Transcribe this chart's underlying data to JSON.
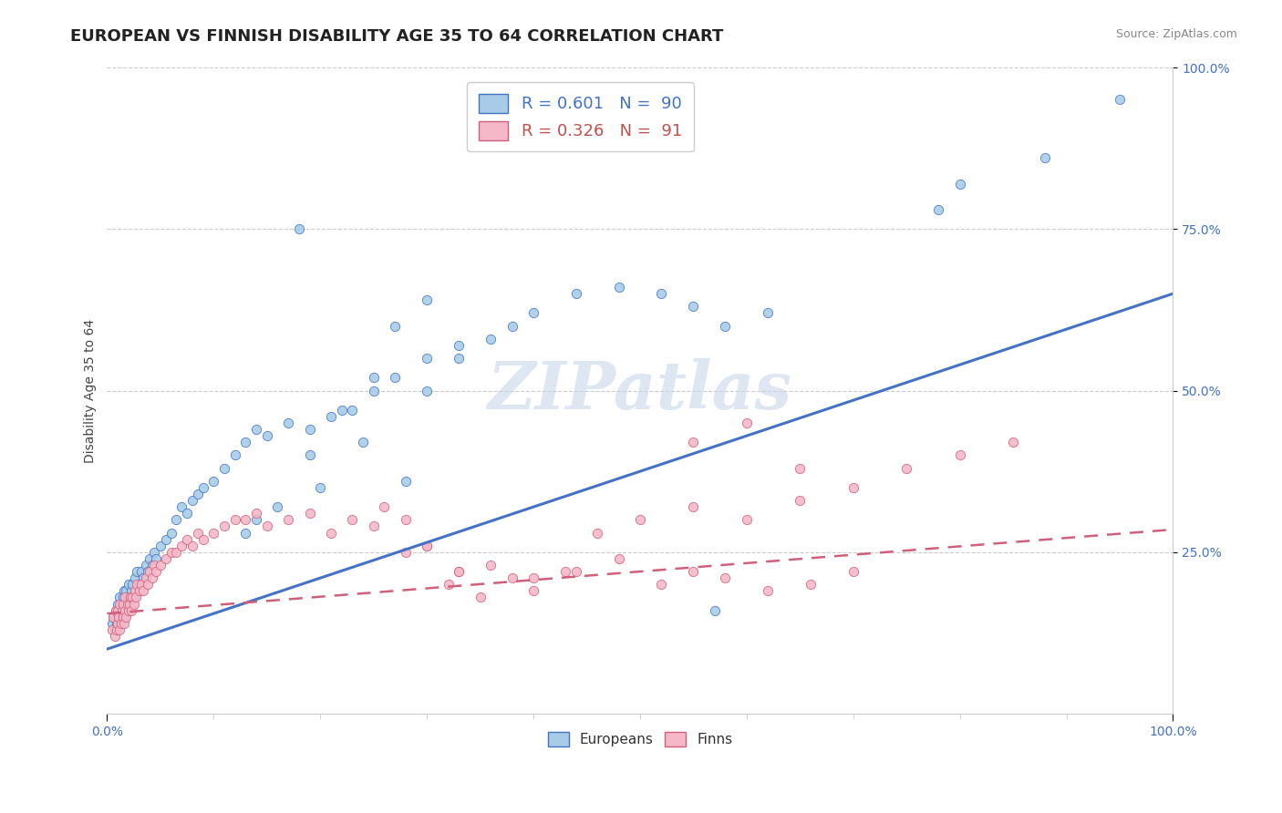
{
  "title": "EUROPEAN VS FINNISH DISABILITY AGE 35 TO 64 CORRELATION CHART",
  "source_text": "Source: ZipAtlas.com",
  "ylabel": "Disability Age 35 to 64",
  "xlim": [
    0.0,
    1.0
  ],
  "ylim": [
    0.0,
    1.0
  ],
  "legend_entries": [
    {
      "label": "R = 0.601   N =  90",
      "color": "#a8cce8",
      "edge_color": "#4472c4",
      "text_color": "#4472c4"
    },
    {
      "label": "R = 0.326   N =  91",
      "color": "#f4b8c8",
      "edge_color": "#d0607a",
      "text_color": "#c0504d"
    }
  ],
  "bottom_legend": [
    {
      "label": "Europeans",
      "color": "#a8cce8",
      "edge_color": "#4472c4"
    },
    {
      "label": "Finns",
      "color": "#f4b8c8",
      "edge_color": "#d0607a"
    }
  ],
  "watermark": "ZIPatlas",
  "blue_line": {
    "x0": 0.0,
    "y0": 0.1,
    "x1": 1.0,
    "y1": 0.65
  },
  "pink_line": {
    "x0": 0.0,
    "y0": 0.155,
    "x1": 1.0,
    "y1": 0.285
  },
  "blue_color": "#a8cce8",
  "blue_edge_color": "#4472c4",
  "blue_line_color": "#4472c4",
  "pink_color": "#f4b8c8",
  "pink_edge_color": "#d0607a",
  "pink_line_color": "#d0607a",
  "background_color": "#ffffff",
  "grid_color": "#cccccc",
  "title_fontsize": 13,
  "axis_label_fontsize": 10,
  "tick_fontsize": 10,
  "watermark_fontsize": 52,
  "watermark_color": "#c8d8e8",
  "source_fontsize": 9,
  "source_color": "#888888",
  "blue_x": [
    0.005,
    0.006,
    0.007,
    0.008,
    0.009,
    0.01,
    0.01,
    0.011,
    0.012,
    0.012,
    0.013,
    0.014,
    0.015,
    0.015,
    0.016,
    0.016,
    0.017,
    0.018,
    0.018,
    0.019,
    0.02,
    0.02,
    0.021,
    0.022,
    0.023,
    0.024,
    0.025,
    0.026,
    0.027,
    0.028,
    0.03,
    0.032,
    0.034,
    0.036,
    0.038,
    0.04,
    0.042,
    0.044,
    0.046,
    0.05,
    0.055,
    0.06,
    0.065,
    0.07,
    0.075,
    0.08,
    0.085,
    0.09,
    0.1,
    0.11,
    0.12,
    0.13,
    0.14,
    0.15,
    0.17,
    0.19,
    0.21,
    0.23,
    0.25,
    0.27,
    0.3,
    0.33,
    0.36,
    0.38,
    0.4,
    0.44,
    0.48,
    0.52,
    0.55,
    0.58,
    0.62,
    0.27,
    0.3,
    0.33,
    0.3,
    0.25,
    0.22,
    0.19,
    0.24,
    0.28,
    0.18,
    0.2,
    0.16,
    0.14,
    0.13,
    0.57,
    0.78,
    0.8,
    0.88,
    0.95
  ],
  "blue_y": [
    0.14,
    0.15,
    0.13,
    0.16,
    0.14,
    0.15,
    0.17,
    0.16,
    0.14,
    0.18,
    0.15,
    0.17,
    0.16,
    0.18,
    0.15,
    0.19,
    0.16,
    0.17,
    0.19,
    0.16,
    0.18,
    0.2,
    0.17,
    0.18,
    0.19,
    0.2,
    0.18,
    0.21,
    0.19,
    0.22,
    0.2,
    0.22,
    0.21,
    0.23,
    0.22,
    0.24,
    0.23,
    0.25,
    0.24,
    0.26,
    0.27,
    0.28,
    0.3,
    0.32,
    0.31,
    0.33,
    0.34,
    0.35,
    0.36,
    0.38,
    0.4,
    0.42,
    0.44,
    0.43,
    0.45,
    0.44,
    0.46,
    0.47,
    0.5,
    0.52,
    0.55,
    0.57,
    0.58,
    0.6,
    0.62,
    0.65,
    0.66,
    0.65,
    0.63,
    0.6,
    0.62,
    0.6,
    0.64,
    0.55,
    0.5,
    0.52,
    0.47,
    0.4,
    0.42,
    0.36,
    0.75,
    0.35,
    0.32,
    0.3,
    0.28,
    0.16,
    0.78,
    0.82,
    0.86,
    0.95
  ],
  "pink_x": [
    0.005,
    0.006,
    0.007,
    0.008,
    0.009,
    0.01,
    0.01,
    0.011,
    0.012,
    0.012,
    0.013,
    0.014,
    0.015,
    0.015,
    0.016,
    0.017,
    0.017,
    0.018,
    0.019,
    0.02,
    0.021,
    0.022,
    0.023,
    0.024,
    0.025,
    0.026,
    0.027,
    0.028,
    0.03,
    0.032,
    0.034,
    0.036,
    0.038,
    0.04,
    0.042,
    0.044,
    0.046,
    0.05,
    0.055,
    0.06,
    0.065,
    0.07,
    0.075,
    0.08,
    0.085,
    0.09,
    0.1,
    0.11,
    0.12,
    0.13,
    0.14,
    0.15,
    0.17,
    0.19,
    0.21,
    0.23,
    0.25,
    0.28,
    0.3,
    0.33,
    0.36,
    0.4,
    0.44,
    0.48,
    0.52,
    0.55,
    0.58,
    0.62,
    0.66,
    0.7,
    0.26,
    0.28,
    0.3,
    0.32,
    0.33,
    0.35,
    0.38,
    0.4,
    0.43,
    0.46,
    0.5,
    0.55,
    0.6,
    0.65,
    0.7,
    0.75,
    0.8,
    0.85,
    0.55,
    0.6,
    0.65
  ],
  "pink_y": [
    0.13,
    0.15,
    0.12,
    0.16,
    0.13,
    0.14,
    0.16,
    0.15,
    0.13,
    0.17,
    0.14,
    0.16,
    0.15,
    0.17,
    0.14,
    0.16,
    0.18,
    0.15,
    0.17,
    0.16,
    0.17,
    0.18,
    0.16,
    0.18,
    0.17,
    0.19,
    0.18,
    0.2,
    0.19,
    0.2,
    0.19,
    0.21,
    0.2,
    0.22,
    0.21,
    0.23,
    0.22,
    0.23,
    0.24,
    0.25,
    0.25,
    0.26,
    0.27,
    0.26,
    0.28,
    0.27,
    0.28,
    0.29,
    0.3,
    0.3,
    0.31,
    0.29,
    0.3,
    0.31,
    0.28,
    0.3,
    0.29,
    0.25,
    0.26,
    0.22,
    0.23,
    0.21,
    0.22,
    0.24,
    0.2,
    0.22,
    0.21,
    0.19,
    0.2,
    0.22,
    0.32,
    0.3,
    0.26,
    0.2,
    0.22,
    0.18,
    0.21,
    0.19,
    0.22,
    0.28,
    0.3,
    0.32,
    0.3,
    0.33,
    0.35,
    0.38,
    0.4,
    0.42,
    0.42,
    0.45,
    0.38
  ]
}
